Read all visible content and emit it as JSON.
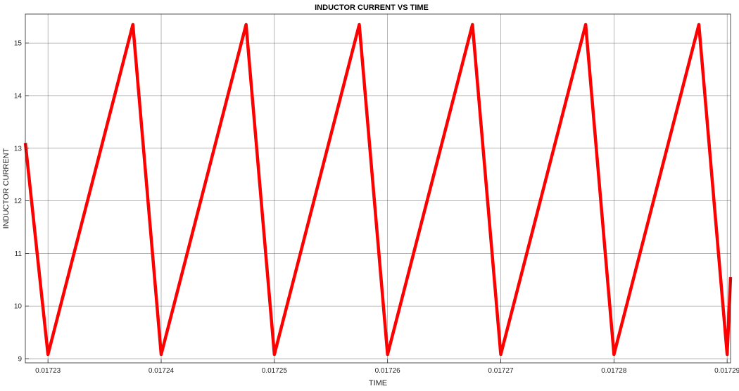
{
  "chart_data": {
    "type": "line",
    "title": "INDUCTOR CURRENT VS TIME",
    "xlabel": "TIME",
    "ylabel": "INDUCTOR CURRENT",
    "xlim": [
      0.017228,
      0.0172903
    ],
    "ylim": [
      8.92,
      15.55
    ],
    "xticks": [
      0.01723,
      0.01724,
      0.01725,
      0.01726,
      0.01727,
      0.01728,
      0.01729
    ],
    "xtick_labels": [
      "0.01723",
      "0.01724",
      "0.01725",
      "0.01726",
      "0.01727",
      "0.01728",
      "0.01729"
    ],
    "yticks": [
      9,
      10,
      11,
      12,
      13,
      14,
      15
    ],
    "ytick_labels": [
      "9",
      "10",
      "11",
      "12",
      "13",
      "14",
      "15"
    ],
    "grid": true,
    "series": [
      {
        "color": "#ff0000",
        "x": [
          0.017228,
          0.01723,
          0.0172375,
          0.01724,
          0.0172475,
          0.01725,
          0.0172575,
          0.01726,
          0.0172675,
          0.01727,
          0.0172775,
          0.01728,
          0.0172875,
          0.01729,
          0.0172903
        ],
        "y": [
          13.1,
          9.08,
          15.35,
          9.08,
          15.35,
          9.08,
          15.35,
          9.08,
          15.35,
          9.08,
          15.35,
          9.08,
          15.35,
          9.08,
          10.55
        ]
      }
    ]
  }
}
